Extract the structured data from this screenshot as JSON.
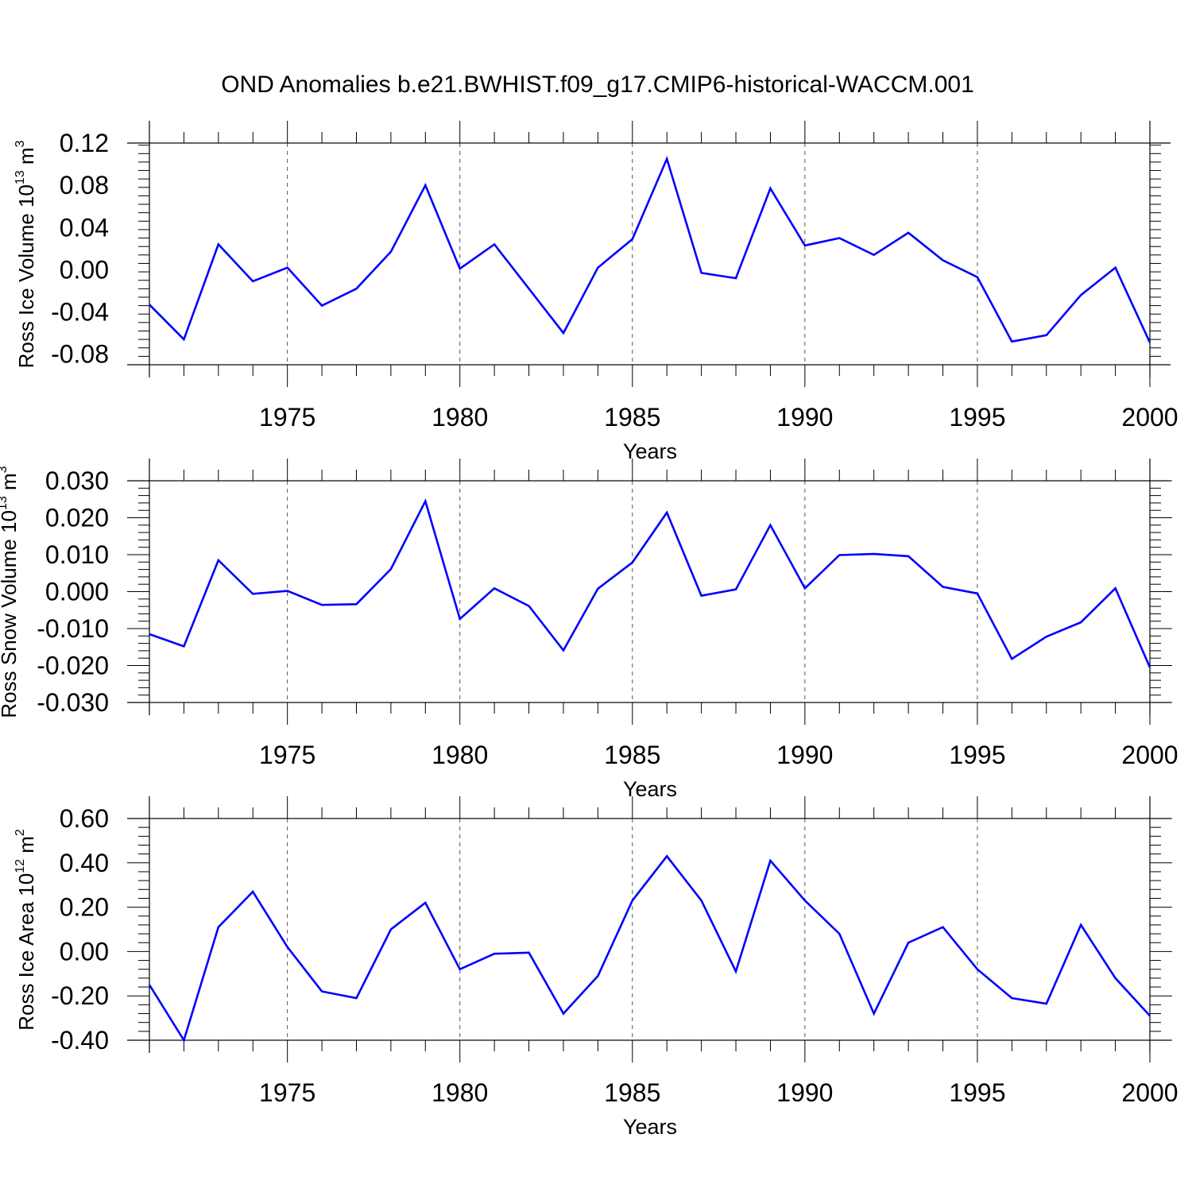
{
  "title": "OND Anomalies b.e21.BWHIST.f09_g17.CMIP6-historical-WACCM.001",
  "line_color": "#0000ff",
  "chart_data": [
    {
      "type": "line",
      "ylabel": "Ross Ice Volume 10",
      "ylabel_exponent": "13",
      "ylabel_unit": "m",
      "ylabel_unit_exponent": "3",
      "xlabel": "Years",
      "xlim": [
        1971,
        2000
      ],
      "ylim": [
        -0.09,
        0.12
      ],
      "yticks": [
        0.12,
        0.08,
        0.04,
        0.0,
        -0.04,
        -0.08
      ],
      "ytick_labels": [
        "0.12",
        "0.08",
        "0.04",
        "0.00",
        "-0.04",
        "-0.08"
      ],
      "xticks": [
        1975,
        1980,
        1985,
        1990,
        1995,
        2000
      ],
      "xtick_labels": [
        "1975",
        "1980",
        "1985",
        "1990",
        "1995",
        "2000"
      ],
      "x": [
        1971,
        1972,
        1973,
        1974,
        1975,
        1976,
        1977,
        1978,
        1979,
        1980,
        1981,
        1982,
        1983,
        1984,
        1985,
        1986,
        1987,
        1988,
        1989,
        1990,
        1991,
        1992,
        1993,
        1994,
        1995,
        1996,
        1997,
        1998,
        1999,
        2000
      ],
      "values": [
        -0.033,
        -0.066,
        0.024,
        -0.011,
        0.002,
        -0.034,
        -0.018,
        0.017,
        0.08,
        0.001,
        0.024,
        -0.018,
        -0.06,
        0.002,
        0.029,
        0.105,
        -0.003,
        -0.008,
        0.077,
        0.023,
        0.03,
        0.014,
        0.035,
        0.009,
        -0.007,
        -0.068,
        -0.062,
        -0.024,
        0.002,
        -0.069
      ]
    },
    {
      "type": "line",
      "ylabel": "Ross Snow Volume 10",
      "ylabel_exponent": "13",
      "ylabel_unit": "m",
      "ylabel_unit_exponent": "3",
      "xlabel": "Years",
      "xlim": [
        1971,
        2000
      ],
      "ylim": [
        -0.03,
        0.03
      ],
      "yticks": [
        0.03,
        0.02,
        0.01,
        0.0,
        -0.01,
        -0.02,
        -0.03
      ],
      "ytick_labels": [
        "0.030",
        "0.020",
        "0.010",
        "0.000",
        "-0.010",
        "-0.020",
        "-0.030"
      ],
      "xticks": [
        1975,
        1980,
        1985,
        1990,
        1995,
        2000
      ],
      "xtick_labels": [
        "1975",
        "1980",
        "1985",
        "1990",
        "1995",
        "2000"
      ],
      "x": [
        1971,
        1972,
        1973,
        1974,
        1975,
        1976,
        1977,
        1978,
        1979,
        1980,
        1981,
        1982,
        1983,
        1984,
        1985,
        1986,
        1987,
        1988,
        1989,
        1990,
        1991,
        1992,
        1993,
        1994,
        1995,
        1996,
        1997,
        1998,
        1999,
        2000
      ],
      "values": [
        -0.0115,
        -0.0148,
        0.0085,
        -0.0006,
        0.0002,
        -0.0036,
        -0.0034,
        0.0061,
        0.0245,
        -0.0074,
        0.0009,
        -0.0039,
        -0.0159,
        0.0008,
        0.0079,
        0.0214,
        -0.0011,
        0.0006,
        0.018,
        0.0009,
        0.0099,
        0.0102,
        0.0096,
        0.0013,
        -0.0005,
        -0.0182,
        -0.0122,
        -0.0083,
        0.0009,
        -0.0205
      ]
    },
    {
      "type": "line",
      "ylabel": "Ross Ice Area 10",
      "ylabel_exponent": "12",
      "ylabel_unit": "m",
      "ylabel_unit_exponent": "2",
      "xlabel": "Years",
      "xlim": [
        1971,
        2000
      ],
      "ylim": [
        -0.4,
        0.6
      ],
      "yticks": [
        0.6,
        0.4,
        0.2,
        0.0,
        -0.2,
        -0.4
      ],
      "ytick_labels": [
        "0.60",
        "0.40",
        "0.20",
        "0.00",
        "-0.20",
        "-0.40"
      ],
      "xticks": [
        1975,
        1980,
        1985,
        1990,
        1995,
        2000
      ],
      "xtick_labels": [
        "1975",
        "1980",
        "1985",
        "1990",
        "1995",
        "2000"
      ],
      "x": [
        1971,
        1972,
        1973,
        1974,
        1975,
        1976,
        1977,
        1978,
        1979,
        1980,
        1981,
        1982,
        1983,
        1984,
        1985,
        1986,
        1987,
        1988,
        1989,
        1990,
        1991,
        1992,
        1993,
        1994,
        1995,
        1996,
        1997,
        1998,
        1999,
        2000
      ],
      "values": [
        -0.15,
        -0.4,
        0.11,
        0.27,
        0.02,
        -0.18,
        -0.21,
        0.1,
        0.22,
        -0.08,
        -0.01,
        -0.005,
        -0.28,
        -0.11,
        0.23,
        0.43,
        0.23,
        -0.09,
        0.41,
        0.23,
        0.08,
        -0.28,
        0.04,
        0.11,
        -0.08,
        -0.21,
        -0.235,
        0.12,
        -0.12,
        -0.29
      ]
    }
  ]
}
